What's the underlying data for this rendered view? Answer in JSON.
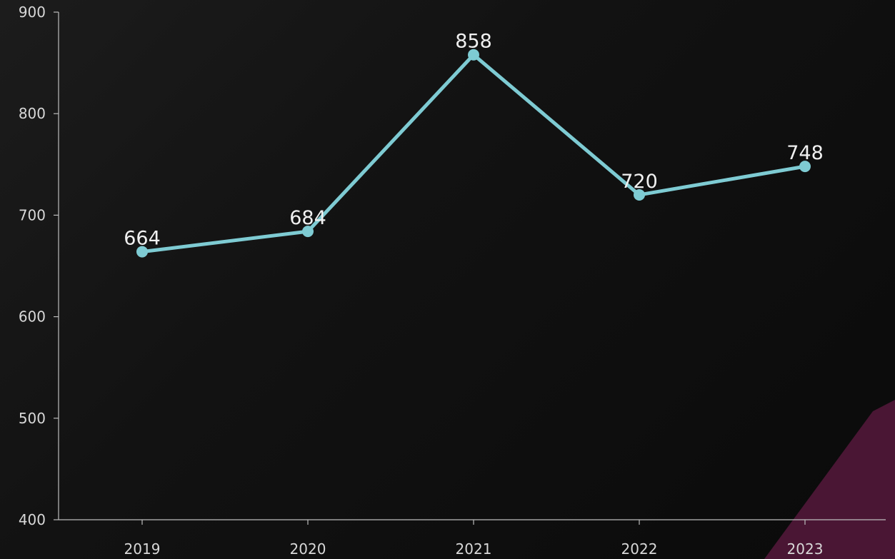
{
  "chart_data": {
    "type": "line",
    "categories": [
      "2019",
      "2020",
      "2021",
      "2022",
      "2023"
    ],
    "series": [
      {
        "values": [
          664,
          684,
          858,
          720,
          748
        ]
      }
    ],
    "data_labels": [
      "664",
      "684",
      "858",
      "720",
      "748"
    ],
    "ylim": [
      400,
      900
    ],
    "yticks": [
      "400",
      "500",
      "600",
      "700",
      "800",
      "900"
    ],
    "grid": false,
    "line_color": "#7ecbd3",
    "axis_color": "#bdbdbd",
    "corner_accent_color": "#4a1634"
  }
}
